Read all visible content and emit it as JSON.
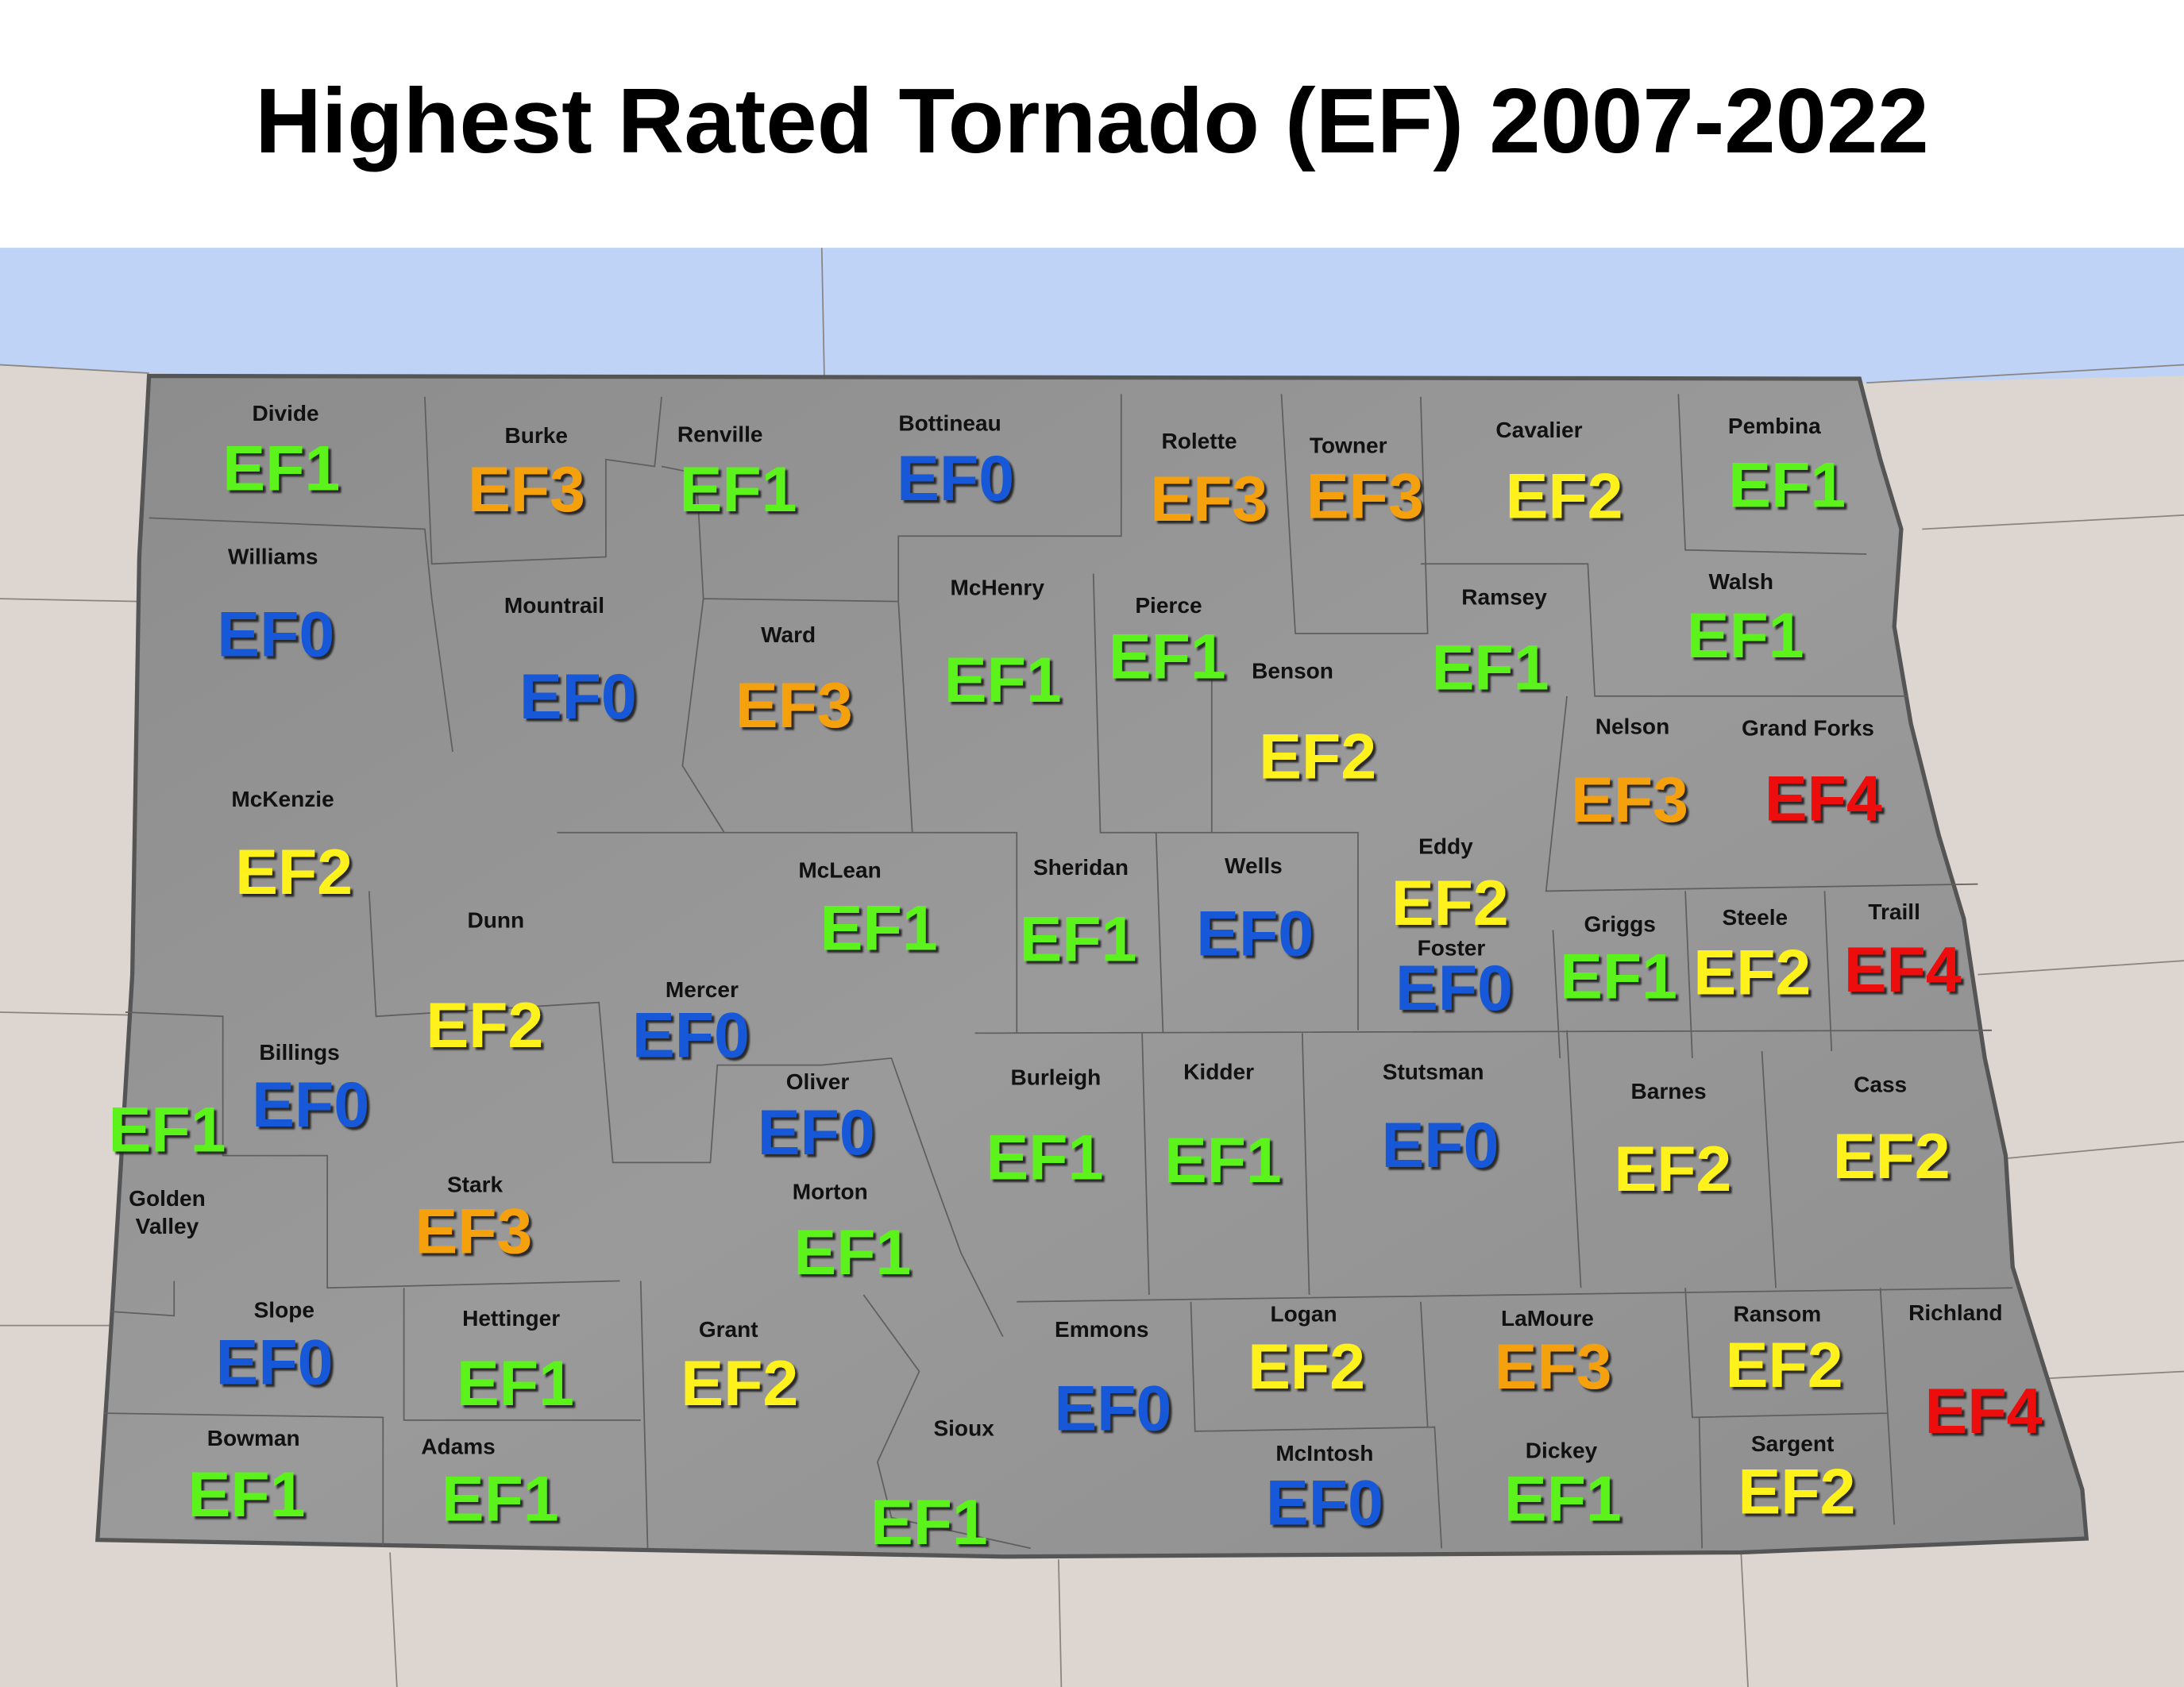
{
  "title": "Highest Rated Tornado (EF) 2007-2022",
  "colors": {
    "EF0": "#1259d8",
    "EF1": "#5cf21c",
    "EF2": "#fff21a",
    "EF3": "#f5a010",
    "EF4": "#ee1111"
  },
  "counties": [
    {
      "name": "Divide",
      "rating": "EF1"
    },
    {
      "name": "Burke",
      "rating": "EF3"
    },
    {
      "name": "Renville",
      "rating": "EF1"
    },
    {
      "name": "Bottineau",
      "rating": "EF0"
    },
    {
      "name": "Rolette",
      "rating": "EF3"
    },
    {
      "name": "Towner",
      "rating": "EF3"
    },
    {
      "name": "Cavalier",
      "rating": "EF2"
    },
    {
      "name": "Pembina",
      "rating": "EF1"
    },
    {
      "name": "Williams",
      "rating": "EF0"
    },
    {
      "name": "Mountrail",
      "rating": "EF0"
    },
    {
      "name": "Ward",
      "rating": "EF3"
    },
    {
      "name": "McHenry",
      "rating": "EF1"
    },
    {
      "name": "Pierce",
      "rating": "EF1"
    },
    {
      "name": "Benson",
      "rating": "EF2"
    },
    {
      "name": "Ramsey",
      "rating": "EF1"
    },
    {
      "name": "Walsh",
      "rating": "EF1"
    },
    {
      "name": "Nelson",
      "rating": "EF3"
    },
    {
      "name": "Grand Forks",
      "rating": "EF4"
    },
    {
      "name": "McKenzie",
      "rating": "EF2"
    },
    {
      "name": "Dunn",
      "rating": "EF2"
    },
    {
      "name": "McLean",
      "rating": "EF1"
    },
    {
      "name": "Sheridan",
      "rating": "EF1"
    },
    {
      "name": "Wells",
      "rating": "EF0"
    },
    {
      "name": "Eddy",
      "rating": "EF2"
    },
    {
      "name": "Foster",
      "rating": "EF0"
    },
    {
      "name": "Griggs",
      "rating": "EF1"
    },
    {
      "name": "Steele",
      "rating": "EF2"
    },
    {
      "name": "Traill",
      "rating": "EF4"
    },
    {
      "name": "Mercer",
      "rating": "EF0"
    },
    {
      "name": "Billings",
      "rating": "EF0"
    },
    {
      "name": "Golden Valley",
      "rating": "EF1"
    },
    {
      "name": "Oliver",
      "rating": "EF0"
    },
    {
      "name": "Burleigh",
      "rating": "EF1"
    },
    {
      "name": "Kidder",
      "rating": "EF1"
    },
    {
      "name": "Stutsman",
      "rating": "EF0"
    },
    {
      "name": "Barnes",
      "rating": "EF2"
    },
    {
      "name": "Cass",
      "rating": "EF2"
    },
    {
      "name": "Stark",
      "rating": "EF3"
    },
    {
      "name": "Morton",
      "rating": "EF1"
    },
    {
      "name": "Slope",
      "rating": "EF0"
    },
    {
      "name": "Hettinger",
      "rating": "EF1"
    },
    {
      "name": "Grant",
      "rating": "EF2"
    },
    {
      "name": "Emmons",
      "rating": "EF0"
    },
    {
      "name": "Logan",
      "rating": "EF2"
    },
    {
      "name": "LaMoure",
      "rating": "EF3"
    },
    {
      "name": "Ransom",
      "rating": "EF2"
    },
    {
      "name": "Richland",
      "rating": "EF4"
    },
    {
      "name": "Bowman",
      "rating": "EF1"
    },
    {
      "name": "Adams",
      "rating": "EF1"
    },
    {
      "name": "Sioux",
      "rating": "EF1"
    },
    {
      "name": "McIntosh",
      "rating": "EF0"
    },
    {
      "name": "Dickey",
      "rating": "EF1"
    },
    {
      "name": "Sargent",
      "rating": "EF2"
    }
  ]
}
